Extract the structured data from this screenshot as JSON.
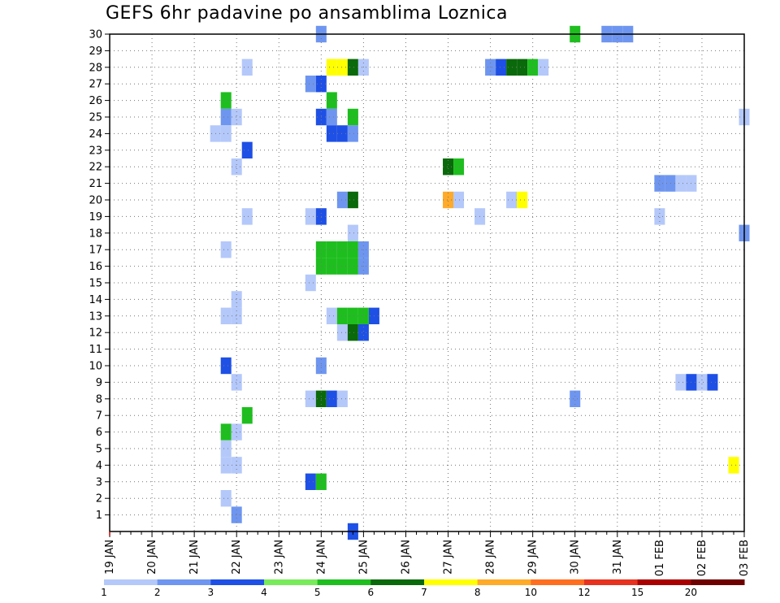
{
  "chart_data": {
    "type": "heatmap",
    "title": "GEFS 6hr padavine po ansamblima Loznica",
    "x_tick_labels": [
      "19 JAN",
      "20 JAN",
      "21 JAN",
      "22 JAN",
      "23 JAN",
      "24 JAN",
      "25 JAN",
      "26 JAN",
      "27 JAN",
      "28 JAN",
      "29 JAN",
      "30 JAN",
      "31 JAN",
      "01 FEB",
      "02 FEB",
      "03 FEB"
    ],
    "y_tick_labels": [
      "1",
      "2",
      "3",
      "4",
      "5",
      "6",
      "7",
      "8",
      "9",
      "10",
      "11",
      "12",
      "13",
      "14",
      "15",
      "16",
      "17",
      "18",
      "19",
      "20",
      "21",
      "22",
      "23",
      "24",
      "25",
      "26",
      "27",
      "28",
      "29",
      "30"
    ],
    "x_range_6h_steps": [
      0,
      60
    ],
    "y_range_members": [
      0,
      30
    ],
    "grid": "dotted",
    "legend": {
      "placement": "bottom",
      "labels": [
        "1",
        "2",
        "3",
        "4",
        "5",
        "6",
        "7",
        "8",
        "10",
        "12",
        "15",
        "20"
      ],
      "colors": [
        "#b4c8fa",
        "#6e96f0",
        "#1e50e6",
        "#78eb5a",
        "#1ebe1e",
        "#0a690a",
        "#ffff00",
        "#ffaa28",
        "#ff6e1e",
        "#e6321e",
        "#aa0000",
        "#6e0000"
      ]
    },
    "cells": [
      [
        20,
        30,
        2
      ],
      [
        44,
        30,
        5
      ],
      [
        47,
        30,
        2
      ],
      [
        48,
        30,
        2
      ],
      [
        49,
        30,
        2
      ],
      [
        13,
        28,
        1
      ],
      [
        21,
        28,
        7
      ],
      [
        22,
        28,
        7
      ],
      [
        23,
        28,
        6
      ],
      [
        24,
        28,
        1
      ],
      [
        36,
        28,
        2
      ],
      [
        37,
        28,
        3
      ],
      [
        38,
        28,
        6
      ],
      [
        39,
        28,
        6
      ],
      [
        40,
        28,
        5
      ],
      [
        41,
        28,
        1
      ],
      [
        19,
        27,
        2
      ],
      [
        20,
        27,
        3
      ],
      [
        11,
        26,
        5
      ],
      [
        21,
        26,
        5
      ],
      [
        11,
        25,
        2
      ],
      [
        12,
        25,
        1
      ],
      [
        20,
        25,
        3
      ],
      [
        21,
        25,
        2
      ],
      [
        23,
        25,
        5
      ],
      [
        60,
        25,
        1
      ],
      [
        10,
        24,
        1
      ],
      [
        11,
        24,
        1
      ],
      [
        21,
        24,
        3
      ],
      [
        22,
        24,
        3
      ],
      [
        23,
        24,
        2
      ],
      [
        13,
        23,
        3
      ],
      [
        12,
        22,
        1
      ],
      [
        32,
        22,
        6
      ],
      [
        33,
        22,
        5
      ],
      [
        52,
        21,
        2
      ],
      [
        53,
        21,
        2
      ],
      [
        54,
        21,
        1
      ],
      [
        55,
        21,
        1
      ],
      [
        22,
        20,
        2
      ],
      [
        23,
        20,
        6
      ],
      [
        32,
        20,
        8
      ],
      [
        33,
        20,
        1
      ],
      [
        38,
        20,
        1
      ],
      [
        39,
        20,
        7
      ],
      [
        13,
        19,
        1
      ],
      [
        19,
        19,
        1
      ],
      [
        20,
        19,
        3
      ],
      [
        35,
        19,
        1
      ],
      [
        52,
        19,
        1
      ],
      [
        23,
        18,
        1
      ],
      [
        60,
        18,
        2
      ],
      [
        11,
        17,
        1
      ],
      [
        20,
        17,
        5
      ],
      [
        21,
        17,
        5
      ],
      [
        22,
        17,
        5
      ],
      [
        23,
        17,
        5
      ],
      [
        24,
        17,
        2
      ],
      [
        20,
        16,
        5
      ],
      [
        21,
        16,
        5
      ],
      [
        22,
        16,
        5
      ],
      [
        23,
        16,
        5
      ],
      [
        24,
        16,
        2
      ],
      [
        19,
        15,
        1
      ],
      [
        12,
        14,
        1
      ],
      [
        11,
        13,
        1
      ],
      [
        12,
        13,
        1
      ],
      [
        21,
        13,
        1
      ],
      [
        22,
        13,
        5
      ],
      [
        23,
        13,
        5
      ],
      [
        24,
        13,
        5
      ],
      [
        25,
        13,
        3
      ],
      [
        22,
        12,
        1
      ],
      [
        23,
        12,
        6
      ],
      [
        24,
        12,
        3
      ],
      [
        11,
        10,
        3
      ],
      [
        20,
        10,
        2
      ],
      [
        12,
        9,
        1
      ],
      [
        54,
        9,
        1
      ],
      [
        55,
        9,
        3
      ],
      [
        56,
        9,
        1
      ],
      [
        57,
        9,
        3
      ],
      [
        19,
        8,
        1
      ],
      [
        20,
        8,
        6
      ],
      [
        21,
        8,
        3
      ],
      [
        22,
        8,
        1
      ],
      [
        44,
        8,
        2
      ],
      [
        13,
        7,
        5
      ],
      [
        11,
        6,
        5
      ],
      [
        12,
        6,
        1
      ],
      [
        11,
        5,
        1
      ],
      [
        11,
        4,
        1
      ],
      [
        12,
        4,
        1
      ],
      [
        59,
        4,
        7
      ],
      [
        19,
        3,
        3
      ],
      [
        20,
        3,
        5
      ],
      [
        11,
        2,
        1
      ],
      [
        12,
        1,
        2
      ],
      [
        23,
        0,
        3
      ]
    ]
  }
}
